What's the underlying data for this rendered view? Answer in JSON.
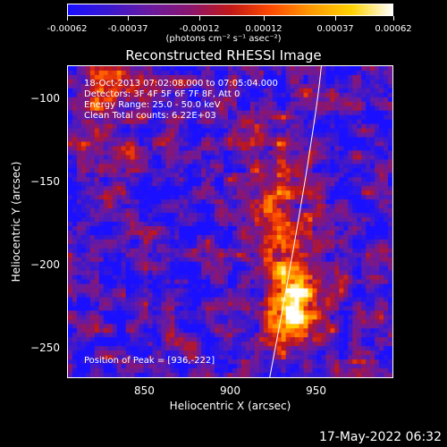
{
  "colorbar": {
    "ticks": [
      "-0.00062",
      "-0.00037",
      "-0.00012",
      "0.00012",
      "0.00037",
      "0.00062"
    ],
    "units": "(photons cm⁻² s⁻¹ asec⁻²)",
    "colors": [
      "#1a10ff",
      "#3a18d0",
      "#6a1aa0",
      "#8a1670",
      "#c01818",
      "#ff4a00",
      "#ff9a00",
      "#ffd200",
      "#ffffff"
    ]
  },
  "chart_data": {
    "type": "heatmap",
    "title": "Reconstructed RHESSI Image",
    "xlabel": "Heliocentric X (arcsec)",
    "ylabel": "Heliocentric Y (arcsec)",
    "xlim": [
      805,
      995
    ],
    "ylim": [
      -268,
      -80
    ],
    "x_ticks": [
      "850",
      "900",
      "950"
    ],
    "y_ticks": [
      "-100",
      "-150",
      "-200",
      "-250"
    ],
    "value_range": [
      -0.00062,
      0.00062
    ],
    "peak": [
      936,
      -222
    ],
    "annotations": {
      "time": "18-Oct-2013 07:02:08.000 to 07:05:04.000",
      "detectors": "Detectors: 3F 4F 5F 6F 7F 8F, Att 0",
      "energy": "Energy Range: 25.0 - 50.0 keV",
      "clean": "Clean     Total counts: 6.22E+03",
      "peak_label": "Position of Peak = [936,-222]"
    }
  },
  "footer": {
    "date": "17-May-2022 06:32"
  }
}
